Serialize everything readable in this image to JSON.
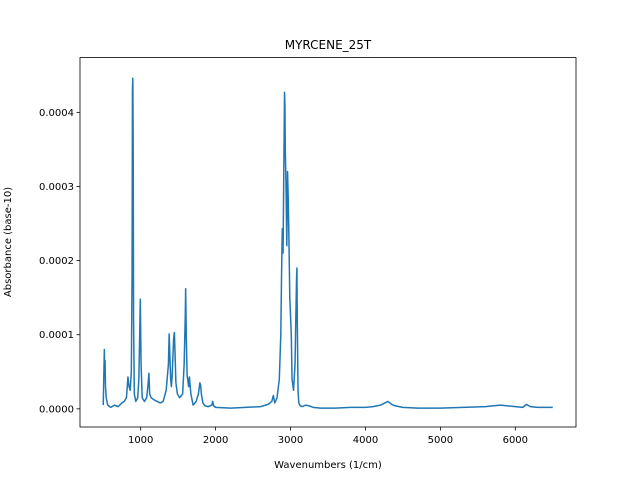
{
  "chart_data": {
    "type": "line",
    "title": "MYRCENE_25T",
    "xlabel": "Wavenumbers (1/cm)",
    "ylabel": "Absorbance (base-10)",
    "xlim": [
      190,
      6810
    ],
    "ylim": [
      -2.45e-05,
      0.000474
    ],
    "x_ticks": [
      1000,
      2000,
      3000,
      4000,
      5000,
      6000
    ],
    "x_tick_labels": [
      "1000",
      "2000",
      "3000",
      "4000",
      "5000",
      "6000"
    ],
    "y_ticks": [
      0,
      0.0001,
      0.0002,
      0.0003,
      0.0004
    ],
    "y_tick_labels": [
      "0.0000",
      "0.0001",
      "0.0002",
      "0.0003",
      "0.0004"
    ],
    "grid": false,
    "series": [
      {
        "color": "#1f77b4",
        "x": [
          500,
          510,
          515,
          520,
          525,
          530,
          540,
          560,
          600,
          650,
          700,
          750,
          780,
          810,
          830,
          845,
          860,
          875,
          885,
          890,
          895,
          900,
          905,
          915,
          935,
          960,
          975,
          985,
          995,
          1005,
          1020,
          1050,
          1080,
          1100,
          1110,
          1120,
          1140,
          1180,
          1220,
          1260,
          1300,
          1340,
          1370,
          1380,
          1390,
          1400,
          1410,
          1420,
          1440,
          1450,
          1460,
          1470,
          1490,
          1520,
          1560,
          1580,
          1595,
          1600,
          1610,
          1620,
          1640,
          1650,
          1670,
          1700,
          1740,
          1770,
          1790,
          1800,
          1810,
          1830,
          1860,
          1900,
          1950,
          1960,
          1975,
          2000,
          2200,
          2400,
          2600,
          2700,
          2750,
          2770,
          2790,
          2820,
          2850,
          2870,
          2880,
          2890,
          2900,
          2910,
          2920,
          2925,
          2930,
          2940,
          2950,
          2960,
          2970,
          2980,
          2990,
          3000,
          3010,
          3020,
          3040,
          3060,
          3080,
          3085,
          3090,
          3100,
          3110,
          3130,
          3160,
          3200,
          3250,
          3300,
          3400,
          3600,
          3800,
          4000,
          4100,
          4200,
          4300,
          4350,
          4400,
          4500,
          4700,
          5000,
          5300,
          5600,
          5800,
          6000,
          6100,
          6150,
          6200,
          6300,
          6400,
          6500
        ],
        "y": [
          5e-06,
          5.5e-05,
          8e-05,
          4.5e-05,
          6.5e-05,
          3e-05,
          1.5e-05,
          5e-06,
          2e-06,
          5e-06,
          3e-06,
          8e-06,
          1e-05,
          1.5e-05,
          4.3e-05,
          3e-05,
          2.5e-05,
          5e-05,
          0.00018,
          0.00043,
          0.000446,
          0.00035,
          0.00012,
          2e-05,
          1e-05,
          1.5e-05,
          4e-05,
          9e-05,
          0.000148,
          6e-05,
          1.5e-05,
          1e-05,
          1.5e-05,
          3.5e-05,
          4.8e-05,
          2e-05,
          1.5e-05,
          1.2e-05,
          1e-05,
          8e-06,
          1e-05,
          2.5e-05,
          6e-05,
          0.000101,
          7e-05,
          4e-05,
          3e-05,
          4.5e-05,
          9.5e-05,
          0.000103,
          7e-05,
          3.5e-05,
          2e-05,
          1.5e-05,
          2e-05,
          6e-05,
          0.000125,
          0.000162,
          9e-05,
          4.5e-05,
          3e-05,
          4.3e-05,
          2e-05,
          5e-06,
          1e-05,
          2e-05,
          3.5e-05,
          3.2e-05,
          2e-05,
          8e-06,
          4e-06,
          3e-06,
          5e-06,
          1e-05,
          4e-06,
          2e-06,
          1e-06,
          2e-06,
          3e-06,
          6e-06,
          1e-05,
          1.8e-05,
          8e-06,
          1.5e-05,
          4e-05,
          0.0001,
          0.00018,
          0.000243,
          0.00021,
          0.00032,
          0.000427,
          0.00041,
          0.00035,
          0.0003,
          0.00022,
          0.00032,
          0.00028,
          0.00022,
          0.00015,
          0.000125,
          0.0001,
          4e-05,
          2.5e-05,
          6e-05,
          0.000175,
          0.00019,
          0.00012,
          2.5e-05,
          8e-06,
          4e-06,
          3e-06,
          5e-06,
          4e-06,
          2e-06,
          1e-06,
          1e-06,
          2e-06,
          2e-06,
          3e-06,
          5e-06,
          1e-05,
          6e-06,
          4e-06,
          2e-06,
          1e-06,
          1e-06,
          2e-06,
          3e-06,
          5e-06,
          3e-06,
          2e-06,
          6e-06,
          3e-06,
          2e-06,
          2e-06,
          2e-06
        ]
      }
    ]
  }
}
